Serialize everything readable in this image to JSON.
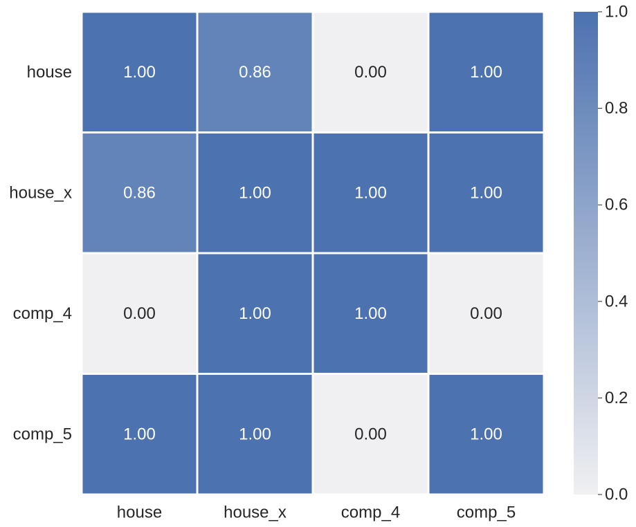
{
  "chart_data": {
    "type": "heatmap",
    "title": "",
    "xlabel": "",
    "ylabel": "",
    "x_categories": [
      "house",
      "house_x",
      "comp_4",
      "comp_5"
    ],
    "y_categories": [
      "house",
      "house_x",
      "comp_4",
      "comp_5"
    ],
    "values": [
      [
        1.0,
        0.86,
        0.0,
        1.0
      ],
      [
        0.86,
        1.0,
        1.0,
        1.0
      ],
      [
        0.0,
        1.0,
        1.0,
        0.0
      ],
      [
        1.0,
        1.0,
        0.0,
        1.0
      ]
    ],
    "cell_labels": [
      [
        "1.00",
        "0.86",
        "0.00",
        "1.00"
      ],
      [
        "0.86",
        "1.00",
        "1.00",
        "1.00"
      ],
      [
        "0.00",
        "1.00",
        "1.00",
        "0.00"
      ],
      [
        "1.00",
        "1.00",
        "0.00",
        "1.00"
      ]
    ],
    "colorbar": {
      "range": [
        0.0,
        1.0
      ],
      "ticks": [
        "0.0",
        "0.2",
        "0.4",
        "0.6",
        "0.8",
        "1.0"
      ],
      "color_low": "#f0f0f2",
      "color_high": "#4c72b0"
    },
    "grid": false,
    "cell_separator_color": "#ffffff",
    "text_color_light": "#ffffff",
    "text_color_dark": "#262626"
  }
}
